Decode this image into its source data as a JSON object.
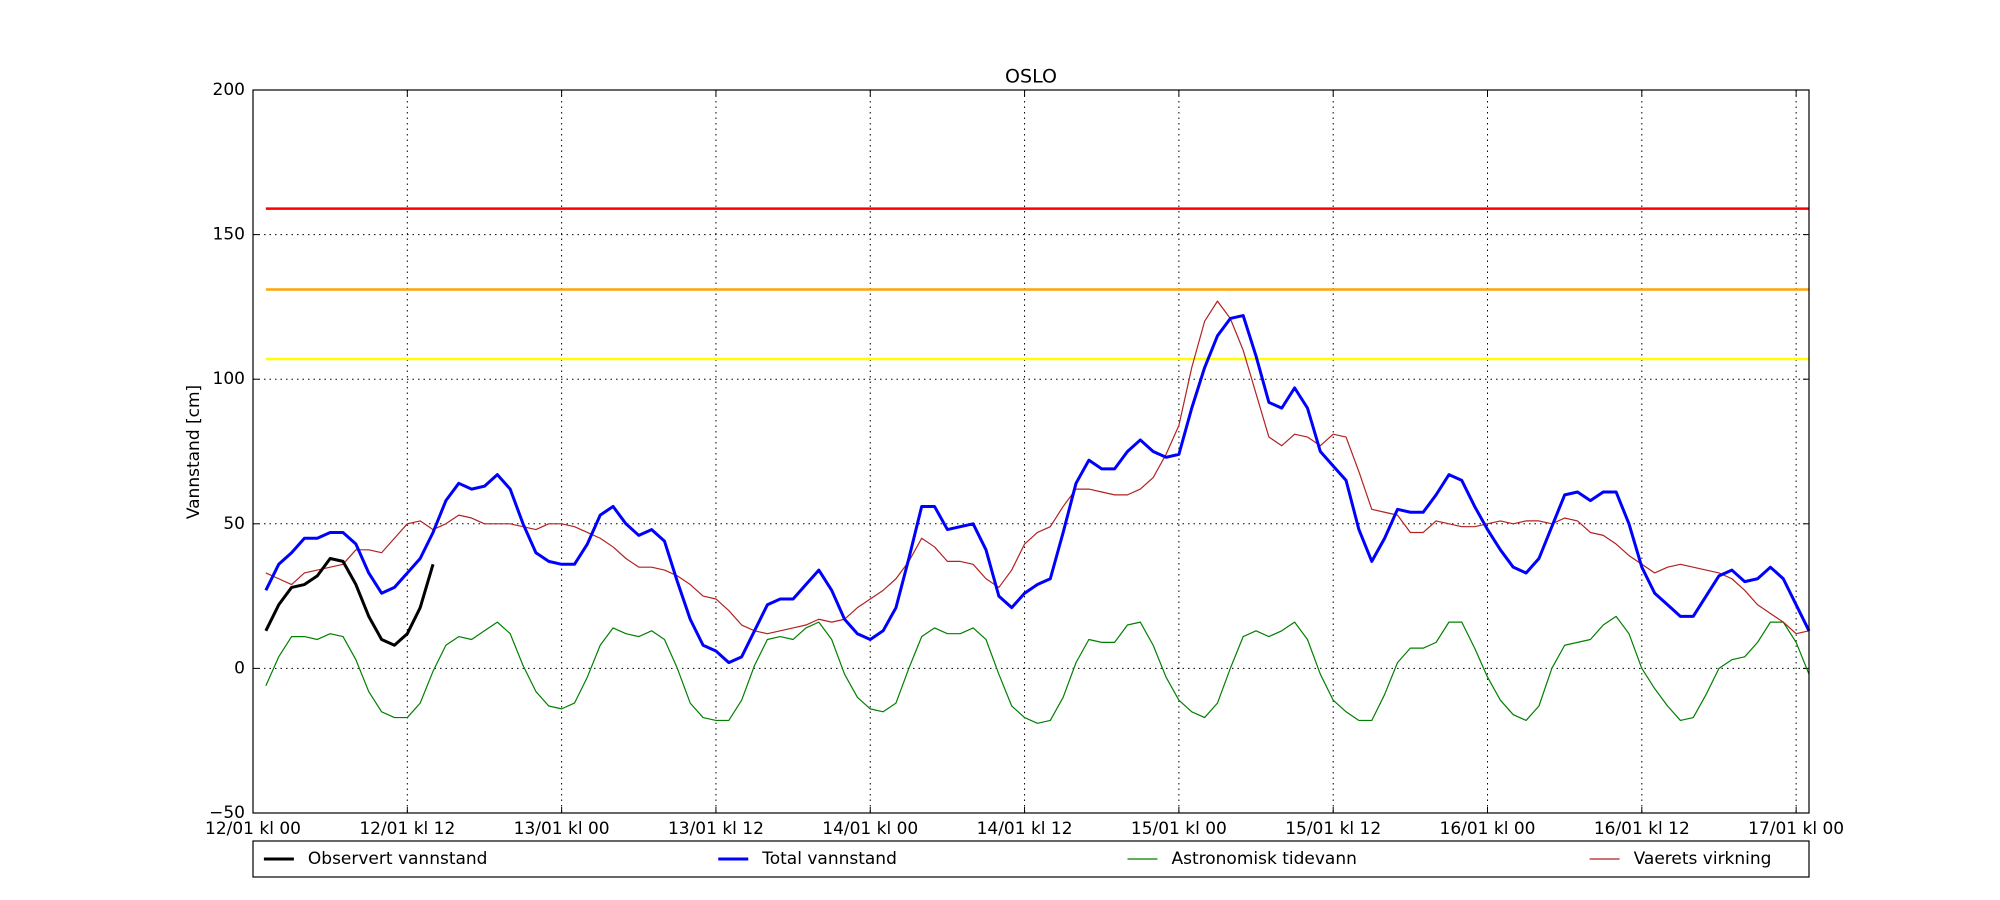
{
  "chart_data": {
    "type": "line",
    "title": "OSLO",
    "y_label": "Vannstand [cm]",
    "x": [
      1,
      2,
      3,
      4,
      5,
      6,
      7,
      8,
      9,
      10,
      11,
      12,
      13,
      14,
      15,
      16,
      17,
      18,
      19,
      20,
      21,
      22,
      23,
      24,
      25,
      26,
      27,
      28,
      29,
      30,
      31,
      32,
      33,
      34,
      35,
      36,
      37,
      38,
      39,
      40,
      41,
      42,
      43,
      44,
      45,
      46,
      47,
      48,
      49,
      50,
      51,
      52,
      53,
      54,
      55,
      56,
      57,
      58,
      59,
      60,
      61,
      62,
      63,
      64,
      65,
      66,
      67,
      68,
      69,
      70,
      71,
      72,
      73,
      74,
      75,
      76,
      77,
      78,
      79,
      80,
      81,
      82,
      83,
      84,
      85,
      86,
      87,
      88,
      89,
      90,
      91,
      92,
      93,
      94,
      95,
      96,
      97,
      98,
      99,
      100,
      101,
      102,
      103,
      104,
      105,
      106,
      107,
      108,
      109,
      110,
      111,
      112,
      113,
      114,
      115,
      116,
      117,
      118,
      119,
      120,
      121
    ],
    "xlim": [
      0,
      121
    ],
    "xticks": [
      {
        "value": 0,
        "label": "12/01 kl 00"
      },
      {
        "value": 12,
        "label": "12/01 kl 12"
      },
      {
        "value": 24,
        "label": "13/01 kl 00"
      },
      {
        "value": 36,
        "label": "13/01 kl 12"
      },
      {
        "value": 48,
        "label": "14/01 kl 00"
      },
      {
        "value": 60,
        "label": "14/01 kl 12"
      },
      {
        "value": 72,
        "label": "15/01 kl 00"
      },
      {
        "value": 84,
        "label": "15/01 kl 12"
      },
      {
        "value": 96,
        "label": "16/01 kl 00"
      },
      {
        "value": 108,
        "label": "16/01 kl 12"
      },
      {
        "value": 120,
        "label": "17/01 kl 00"
      }
    ],
    "ylim": [
      -50,
      200
    ],
    "yticks": [
      {
        "value": -50,
        "label": "−50"
      },
      0,
      50,
      100,
      150,
      200
    ],
    "grid": true,
    "legend": "below",
    "hlines": [
      {
        "value": 159,
        "color": "#ff0000"
      },
      {
        "value": 131,
        "color": "#ffa500"
      },
      {
        "value": 107,
        "color": "#ffff00"
      }
    ],
    "series": [
      {
        "name": "Observert vannstand",
        "color": "#000000",
        "width": 3,
        "values": [
          13,
          22,
          28,
          29,
          32,
          38,
          37,
          29,
          18,
          10,
          8,
          12,
          21,
          36,
          null,
          null,
          null,
          null,
          null,
          null,
          null,
          null,
          null,
          null,
          null,
          null,
          null,
          null,
          null,
          null,
          null,
          null,
          null,
          null,
          null,
          null,
          null,
          null,
          null,
          null,
          null,
          null,
          null,
          null,
          null,
          null,
          null,
          null,
          null,
          null,
          null,
          null,
          null,
          null,
          null,
          null,
          null,
          null,
          null,
          null,
          null,
          null,
          null,
          null,
          null,
          null,
          null,
          null,
          null,
          null,
          null,
          null,
          null,
          null,
          null,
          null,
          null,
          null,
          null,
          null,
          null,
          null,
          null,
          null,
          null,
          null,
          null,
          null,
          null,
          null,
          null,
          null,
          null,
          null,
          null,
          null,
          null,
          null,
          null,
          null,
          null,
          null,
          null,
          null,
          null,
          null,
          null,
          null,
          null,
          null,
          null,
          null,
          null,
          null,
          null,
          null,
          null,
          null,
          null,
          null,
          null
        ]
      },
      {
        "name": "Total vannstand",
        "color": "#0000ff",
        "width": 3,
        "values": [
          27,
          36,
          40,
          45,
          45,
          47,
          47,
          43,
          33,
          26,
          28,
          33,
          38,
          47,
          58,
          64,
          62,
          63,
          67,
          62,
          50,
          40,
          37,
          36,
          36,
          43,
          53,
          56,
          50,
          46,
          48,
          44,
          30,
          17,
          8,
          6,
          2,
          4,
          13,
          22,
          24,
          24,
          29,
          34,
          27,
          17,
          12,
          10,
          13,
          21,
          38,
          56,
          56,
          48,
          49,
          50,
          41,
          25,
          21,
          26,
          29,
          31,
          47,
          64,
          72,
          69,
          69,
          75,
          79,
          75,
          73,
          74,
          90,
          104,
          115,
          121,
          122,
          108,
          92,
          90,
          97,
          90,
          75,
          70,
          65,
          48,
          37,
          45,
          55,
          54,
          54,
          60,
          67,
          65,
          56,
          48,
          41,
          35,
          33,
          38,
          49,
          60,
          61,
          58,
          61,
          61,
          50,
          35,
          26,
          22,
          18,
          18,
          25,
          32,
          34,
          30,
          31,
          35,
          31,
          22,
          13
        ]
      },
      {
        "name": "Astronomisk tidevann",
        "color": "#008000",
        "width": 1.2,
        "values": [
          -6,
          4,
          11,
          11,
          10,
          12,
          11,
          3,
          -8,
          -15,
          -17,
          -17,
          -12,
          -1,
          8,
          11,
          10,
          13,
          16,
          12,
          1,
          -8,
          -13,
          -14,
          -12,
          -3,
          8,
          14,
          12,
          11,
          13,
          10,
          0,
          -12,
          -17,
          -18,
          -18,
          -11,
          1,
          10,
          11,
          10,
          14,
          16,
          10,
          -2,
          -10,
          -14,
          -15,
          -12,
          0,
          11,
          14,
          12,
          12,
          14,
          10,
          -2,
          -13,
          -17,
          -19,
          -18,
          -10,
          2,
          10,
          9,
          9,
          15,
          16,
          8,
          -3,
          -11,
          -15,
          -17,
          -12,
          0,
          11,
          13,
          11,
          13,
          16,
          10,
          -2,
          -11,
          -15,
          -18,
          -18,
          -9,
          2,
          7,
          7,
          9,
          16,
          16,
          7,
          -3,
          -11,
          -16,
          -18,
          -13,
          0,
          8,
          9,
          10,
          15,
          18,
          12,
          0,
          -7,
          -13,
          -18,
          -17,
          -9,
          0,
          3,
          4,
          9,
          16,
          16,
          9,
          -2
        ]
      },
      {
        "name": "Vaerets virkning",
        "color": "#b22222",
        "width": 1.2,
        "values": [
          33,
          31,
          29,
          33,
          34,
          35,
          36,
          41,
          41,
          40,
          45,
          50,
          51,
          48,
          50,
          53,
          52,
          50,
          50,
          50,
          49,
          48,
          50,
          50,
          49,
          47,
          45,
          42,
          38,
          35,
          35,
          34,
          32,
          29,
          25,
          24,
          20,
          15,
          13,
          12,
          13,
          14,
          15,
          17,
          16,
          17,
          21,
          24,
          27,
          31,
          37,
          45,
          42,
          37,
          37,
          36,
          31,
          28,
          34,
          43,
          47,
          49,
          56,
          62,
          62,
          61,
          60,
          60,
          62,
          66,
          74,
          84,
          104,
          120,
          127,
          121,
          110,
          95,
          80,
          77,
          81,
          80,
          77,
          81,
          80,
          68,
          55,
          54,
          53,
          47,
          47,
          51,
          50,
          49,
          49,
          50,
          51,
          50,
          51,
          51,
          50,
          52,
          51,
          47,
          46,
          43,
          39,
          36,
          33,
          35,
          36,
          35,
          34,
          33,
          31,
          27,
          22,
          19,
          16,
          12,
          13
        ]
      }
    ]
  }
}
